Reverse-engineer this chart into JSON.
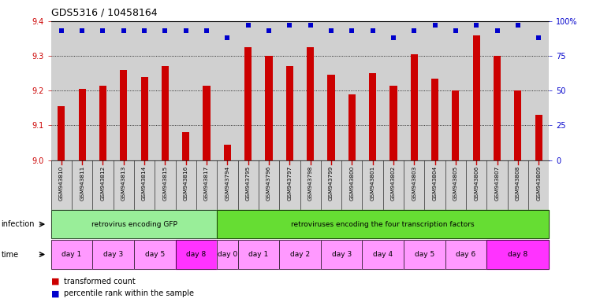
{
  "title": "GDS5316 / 10458164",
  "samples": [
    "GSM943810",
    "GSM943811",
    "GSM943812",
    "GSM943813",
    "GSM943814",
    "GSM943815",
    "GSM943816",
    "GSM943817",
    "GSM943794",
    "GSM943795",
    "GSM943796",
    "GSM943797",
    "GSM943798",
    "GSM943799",
    "GSM943800",
    "GSM943801",
    "GSM943802",
    "GSM943803",
    "GSM943804",
    "GSM943805",
    "GSM943806",
    "GSM943807",
    "GSM943808",
    "GSM943809"
  ],
  "bar_values": [
    9.155,
    9.205,
    9.215,
    9.26,
    9.24,
    9.27,
    9.08,
    9.215,
    9.045,
    9.325,
    9.3,
    9.27,
    9.325,
    9.245,
    9.19,
    9.25,
    9.215,
    9.305,
    9.235,
    9.2,
    9.36,
    9.3,
    9.2,
    9.13
  ],
  "percentile_values": [
    93,
    93,
    93,
    93,
    93,
    93,
    93,
    93,
    88,
    97,
    93,
    97,
    97,
    93,
    93,
    93,
    88,
    93,
    97,
    93,
    97,
    93,
    97,
    88
  ],
  "ylim": [
    9.0,
    9.4
  ],
  "yticks": [
    9.0,
    9.1,
    9.2,
    9.3,
    9.4
  ],
  "y2lim": [
    0,
    100
  ],
  "y2ticks": [
    0,
    25,
    50,
    75,
    100
  ],
  "y2ticklabels": [
    "0",
    "25",
    "50",
    "75",
    "100%"
  ],
  "bar_color": "#cc0000",
  "dot_color": "#0000cc",
  "bg_color_odd": "#d8d8d8",
  "bg_color_even": "#c8c8c8",
  "infection_groups": [
    {
      "label": "retrovirus encoding GFP",
      "start": 0,
      "end": 8,
      "color": "#99ee99"
    },
    {
      "label": "retroviruses encoding the four transcription factors",
      "start": 8,
      "end": 24,
      "color": "#66dd33"
    }
  ],
  "time_groups": [
    {
      "label": "day 1",
      "start": 0,
      "end": 2,
      "color": "#ff99ff"
    },
    {
      "label": "day 3",
      "start": 2,
      "end": 4,
      "color": "#ff99ff"
    },
    {
      "label": "day 5",
      "start": 4,
      "end": 6,
      "color": "#ff99ff"
    },
    {
      "label": "day 8",
      "start": 6,
      "end": 8,
      "color": "#ff33ff"
    },
    {
      "label": "day 0",
      "start": 8,
      "end": 9,
      "color": "#ff99ff"
    },
    {
      "label": "day 1",
      "start": 9,
      "end": 11,
      "color": "#ff99ff"
    },
    {
      "label": "day 2",
      "start": 11,
      "end": 13,
      "color": "#ff99ff"
    },
    {
      "label": "day 3",
      "start": 13,
      "end": 15,
      "color": "#ff99ff"
    },
    {
      "label": "day 4",
      "start": 15,
      "end": 17,
      "color": "#ff99ff"
    },
    {
      "label": "day 5",
      "start": 17,
      "end": 19,
      "color": "#ff99ff"
    },
    {
      "label": "day 6",
      "start": 19,
      "end": 21,
      "color": "#ff99ff"
    },
    {
      "label": "day 8",
      "start": 21,
      "end": 24,
      "color": "#ff33ff"
    }
  ],
  "legend_items": [
    {
      "label": "transformed count",
      "color": "#cc0000"
    },
    {
      "label": "percentile rank within the sample",
      "color": "#0000cc"
    }
  ]
}
